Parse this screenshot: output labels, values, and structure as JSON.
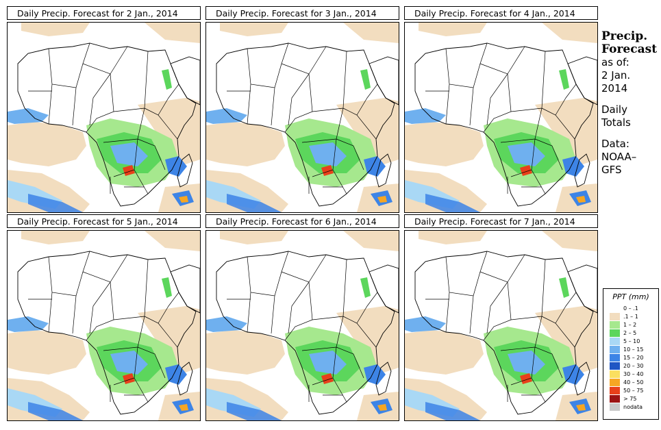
{
  "panels": [
    {
      "title": "Daily Precip. Forecast for  2 Jan., 2014"
    },
    {
      "title": "Daily Precip. Forecast for  3 Jan., 2014"
    },
    {
      "title": "Daily Precip. Forecast for  4 Jan., 2014"
    },
    {
      "title": "Daily Precip. Forecast for  5 Jan., 2014"
    },
    {
      "title": "Daily Precip. Forecast for  6 Jan., 2014"
    },
    {
      "title": "Daily Precip. Forecast for  7 Jan., 2014"
    }
  ],
  "sidebar": {
    "heading1": "Precip.",
    "heading2": "Forecast",
    "asof": "as of:",
    "date1": "2 Jan.",
    "date2": "2014",
    "daily": "Daily",
    "totals": "Totals",
    "data_label": "Data:",
    "source1": "NOAA–",
    "source2": "GFS"
  },
  "legend": {
    "title": "PPT (mm)",
    "items": [
      {
        "label": "0 – .1",
        "color": "#ffffff"
      },
      {
        "label": ".1 – 1",
        "color": "#f2ddbf"
      },
      {
        "label": "1 – 2",
        "color": "#a6e88e"
      },
      {
        "label": "2 – 5",
        "color": "#5cd65c"
      },
      {
        "label": "5 – 10",
        "color": "#a9d8f5"
      },
      {
        "label": "10 – 15",
        "color": "#6fb0ef"
      },
      {
        "label": "15 – 20",
        "color": "#3d84e6"
      },
      {
        "label": "20 – 30",
        "color": "#1f56c4"
      },
      {
        "label": "30 – 40",
        "color": "#fadf60"
      },
      {
        "label": "40 – 50",
        "color": "#f6a623"
      },
      {
        "label": "50 – 75",
        "color": "#e8401a"
      },
      {
        "label": "> 75",
        "color": "#9c1313"
      },
      {
        "label": "nodata",
        "color": "#c8c8c8"
      }
    ]
  }
}
